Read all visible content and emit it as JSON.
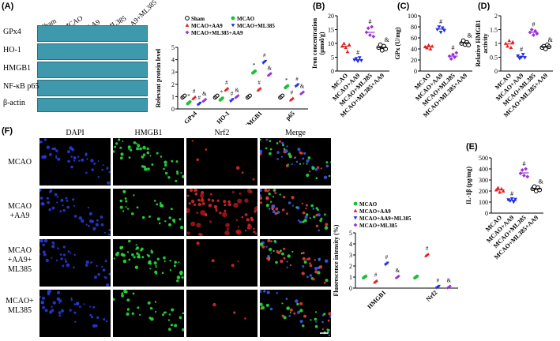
{
  "panels": {
    "A": "(A)",
    "B": "(B)",
    "C": "(C)",
    "D": "(D)",
    "E": "(E)",
    "F": "(F)"
  },
  "blot": {
    "lanes": [
      "Sham",
      "MCAO",
      "AA9",
      "ML385",
      "AA9+\nML385"
    ],
    "lanes_flat": [
      "Sham",
      "MCAO",
      "AA9",
      "ML385",
      "AA9+ML385"
    ],
    "proteins": [
      "GPx4",
      "HO-1",
      "HMGB1",
      "NF-κB p65",
      "β-actin"
    ]
  },
  "colors": {
    "sham": "#000000",
    "mcao": "#1cbf3a",
    "aa9": "#e02020",
    "ml385": "#2030e0",
    "ml385aa9": "#9b30d9",
    "band": "#3f99ad"
  },
  "chart_data": [
    {
      "id": "A-quant",
      "type": "scatter",
      "ylabel": "Relevant protein level",
      "categories": [
        "GPx4",
        "HO-1",
        "HMGB1",
        "p65"
      ],
      "ylim": [
        0,
        5
      ],
      "yticks": [
        0,
        1,
        2,
        3,
        4,
        5
      ],
      "legend": [
        {
          "name": "Sham",
          "color": "#000000",
          "marker": "circle-open"
        },
        {
          "name": "MCAO",
          "color": "#1cbf3a",
          "marker": "circle"
        },
        {
          "name": "MCAO+AA9",
          "color": "#e02020",
          "marker": "triangle"
        },
        {
          "name": "MCAO+ML385",
          "color": "#2030e0",
          "marker": "triangle-down"
        },
        {
          "name": "MCAO+ML385+AA9",
          "color": "#9b30d9",
          "marker": "diamond"
        }
      ],
      "series": [
        {
          "name": "Sham",
          "values": [
            1.0,
            1.0,
            1.0,
            1.0
          ]
        },
        {
          "name": "MCAO",
          "values": [
            0.5,
            0.8,
            3.0,
            1.8
          ]
        },
        {
          "name": "MCAO+AA9",
          "values": [
            0.9,
            1.6,
            1.6,
            0.8
          ]
        },
        {
          "name": "MCAO+ML385",
          "values": [
            0.4,
            0.7,
            3.8,
            1.9
          ]
        },
        {
          "name": "MCAO+ML385+AA9",
          "values": [
            0.7,
            1.0,
            2.8,
            1.3
          ]
        }
      ],
      "annotations": [
        {
          "cat": 0,
          "series": "MCAO",
          "text": "*"
        },
        {
          "cat": 0,
          "series": "MCAO+AA9",
          "text": "#"
        },
        {
          "cat": 0,
          "series": "MCAO+ML385",
          "text": "#"
        },
        {
          "cat": 0,
          "series": "MCAO+ML385+AA9",
          "text": "&"
        },
        {
          "cat": 1,
          "series": "MCAO",
          "text": "*"
        },
        {
          "cat": 1,
          "series": "MCAO+AA9",
          "text": "#"
        },
        {
          "cat": 1,
          "series": "MCAO+ML385",
          "text": "#"
        },
        {
          "cat": 1,
          "series": "MCAO+ML385+AA9",
          "text": "&"
        },
        {
          "cat": 2,
          "series": "MCAO",
          "text": "*"
        },
        {
          "cat": 2,
          "series": "MCAO+AA9",
          "text": "#"
        },
        {
          "cat": 2,
          "series": "MCAO+ML385",
          "text": "#"
        },
        {
          "cat": 2,
          "series": "MCAO+ML385+AA9",
          "text": "&"
        },
        {
          "cat": 3,
          "series": "MCAO",
          "text": "*"
        },
        {
          "cat": 3,
          "series": "MCAO+AA9",
          "text": "#"
        },
        {
          "cat": 3,
          "series": "MCAO+ML385",
          "text": "#"
        },
        {
          "cat": 3,
          "series": "MCAO+ML385+AA9",
          "text": "&"
        }
      ]
    },
    {
      "id": "B",
      "type": "scatter",
      "ylabel": "Iron concentration\n(μmol/g)",
      "ylim": [
        0,
        20
      ],
      "yticks": [
        0,
        5,
        10,
        15,
        20
      ],
      "categories": [
        "MCAO",
        "MCAO+AA9",
        "MCAO+ML385",
        "MCAO+ML385+AA9"
      ],
      "colors": [
        "#e02020",
        "#2030e0",
        "#9b30d9",
        "#000000"
      ],
      "markers": [
        "triangle",
        "triangle-down",
        "diamond",
        "circle-open"
      ],
      "values": [
        [
          9,
          10,
          8.5,
          7,
          9.5
        ],
        [
          4,
          4.5,
          3.5,
          4.8,
          3.8
        ],
        [
          14,
          15.5,
          13,
          16,
          12.5
        ],
        [
          8.5,
          9.5,
          7.5,
          9,
          8
        ]
      ],
      "means": [
        9,
        4.1,
        14,
        8.5
      ],
      "sig": [
        "",
        "#",
        "#",
        "&"
      ]
    },
    {
      "id": "C",
      "type": "scatter",
      "ylabel": "GPx (U/mg)",
      "ylim": [
        0,
        100
      ],
      "yticks": [
        0,
        20,
        40,
        60,
        80,
        100
      ],
      "categories": [
        "MCAO",
        "MCAO+AA9",
        "MCAO+ML385",
        "MCAO+ML385+AA9"
      ],
      "colors": [
        "#e02020",
        "#2030e0",
        "#9b30d9",
        "#000000"
      ],
      "markers": [
        "triangle",
        "triangle-down",
        "diamond",
        "circle-open"
      ],
      "values": [
        [
          44,
          42,
          47,
          40,
          45
        ],
        [
          75,
          80,
          70,
          78,
          73
        ],
        [
          27,
          22,
          30,
          25,
          33
        ],
        [
          50,
          55,
          48,
          52,
          47
        ]
      ],
      "means": [
        44,
        76,
        27,
        51
      ],
      "sig": [
        "",
        "#",
        "#",
        "&"
      ]
    },
    {
      "id": "D",
      "type": "scatter",
      "ylabel": "Relative HMGB1\nactivity",
      "ylim": [
        0,
        2.0
      ],
      "yticks": [
        0,
        0.5,
        1.0,
        1.5,
        2.0
      ],
      "categories": [
        "MCAO",
        "MCAO+AA9",
        "MCAO+ML385",
        "MCAO+ML385+AA9"
      ],
      "colors": [
        "#e02020",
        "#2030e0",
        "#9b30d9",
        "#000000"
      ],
      "markers": [
        "triangle",
        "triangle-down",
        "diamond",
        "circle-open"
      ],
      "values": [
        [
          1.0,
          0.9,
          1.1,
          0.85,
          1.05
        ],
        [
          0.55,
          0.45,
          0.5,
          0.6,
          0.48
        ],
        [
          1.4,
          1.5,
          1.3,
          1.45,
          1.35
        ],
        [
          0.85,
          0.9,
          0.8,
          0.95,
          0.88
        ]
      ],
      "means": [
        0.98,
        0.52,
        1.4,
        0.88
      ],
      "sig": [
        "",
        "#",
        "#",
        "&"
      ]
    },
    {
      "id": "E",
      "type": "scatter",
      "ylabel": "IL-1β   (pg/mg)",
      "ylim": [
        0,
        500
      ],
      "yticks": [
        0,
        100,
        200,
        300,
        400,
        500
      ],
      "categories": [
        "MCAO",
        "MCAO+AA9",
        "MCAO+ML385",
        "MCAO+ML385+AA9"
      ],
      "colors": [
        "#e02020",
        "#2030e0",
        "#9b30d9",
        "#000000"
      ],
      "markers": [
        "triangle",
        "triangle-down",
        "diamond",
        "circle-open"
      ],
      "values": [
        [
          210,
          230,
          190,
          220,
          200
        ],
        [
          120,
          110,
          130,
          100,
          125
        ],
        [
          360,
          390,
          340,
          400,
          330
        ],
        [
          220,
          240,
          200,
          230,
          210
        ]
      ],
      "means": [
        210,
        117,
        364,
        220
      ],
      "sig": [
        "",
        "#",
        "#",
        "&"
      ]
    },
    {
      "id": "F-quant",
      "type": "scatter",
      "ylabel": "Fluorescence intensity (%)",
      "ylim": [
        0,
        5
      ],
      "yticks": [
        0,
        1,
        2,
        3,
        4,
        5
      ],
      "categories": [
        "HMGB1",
        "Nrf2"
      ],
      "legend": [
        {
          "name": "MCAO",
          "color": "#1cbf3a",
          "marker": "circle"
        },
        {
          "name": "MCAO+AA9",
          "color": "#e02020",
          "marker": "triangle"
        },
        {
          "name": "MCAO+AA9+ML385",
          "color": "#2030e0",
          "marker": "triangle-down"
        },
        {
          "name": "MCAO+ML385",
          "color": "#9b30d9",
          "marker": "diamond"
        }
      ],
      "series": [
        {
          "name": "MCAO",
          "values": [
            1.0,
            1.0
          ]
        },
        {
          "name": "MCAO+AA9",
          "values": [
            0.6,
            3.0
          ]
        },
        {
          "name": "MCAO+AA9+ML385",
          "values": [
            2.2,
            0.1
          ]
        },
        {
          "name": "MCAO+ML385",
          "values": [
            1.0,
            0.1
          ]
        }
      ],
      "annotations": [
        {
          "cat": 0,
          "series": "MCAO+AA9",
          "text": "#"
        },
        {
          "cat": 0,
          "series": "MCAO+AA9+ML385",
          "text": "#"
        },
        {
          "cat": 0,
          "series": "MCAO+ML385",
          "text": "&"
        },
        {
          "cat": 1,
          "series": "MCAO+AA9",
          "text": "#"
        },
        {
          "cat": 1,
          "series": "MCAO+AA9+ML385",
          "text": "#"
        },
        {
          "cat": 1,
          "series": "MCAO+ML385",
          "text": "&"
        }
      ]
    }
  ],
  "micrograph": {
    "columns": [
      "DAPI",
      "HMGB1",
      "Nrf2",
      "Merge"
    ],
    "rows": [
      "MCAO",
      "MCAO\n+AA9",
      "MCAO\n+AA9+\nML385",
      "MCAO+\nML385"
    ],
    "row_labels": [
      [
        "MCAO"
      ],
      [
        "MCAO",
        "+AA9"
      ],
      [
        "MCAO",
        "+AA9+",
        "ML385"
      ],
      [
        "MCAO+",
        "ML385"
      ]
    ]
  }
}
